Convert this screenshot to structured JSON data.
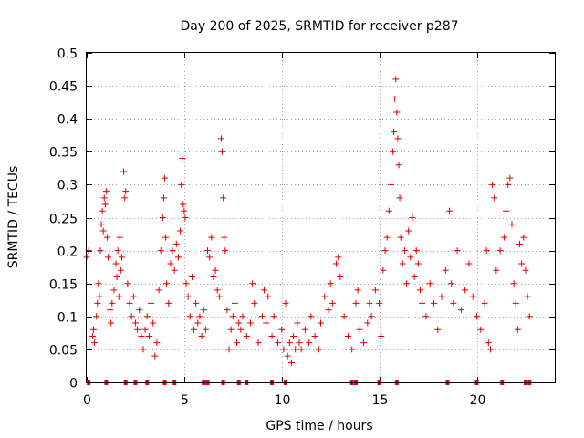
{
  "chart_data": {
    "type": "scatter",
    "title": "Day 200 of 2025, SRMTID for receiver p287",
    "xlabel": "GPS time / hours",
    "ylabel": "SRMTID / TECUs",
    "xlim": [
      0,
      24
    ],
    "ylim": [
      0,
      0.5
    ],
    "xticks": [
      0,
      5,
      10,
      15,
      20
    ],
    "yticks": [
      0,
      0.05,
      0.1,
      0.15,
      0.2,
      0.25,
      0.3,
      0.35,
      0.4,
      0.45,
      0.5
    ],
    "grid": true,
    "series": [
      {
        "name": "SRMTID",
        "color": "#e00000",
        "marker": "plus",
        "points": [
          [
            0.0,
            0.19
          ],
          [
            0.1,
            0.2
          ],
          [
            0.3,
            0.07
          ],
          [
            0.35,
            0.08
          ],
          [
            0.4,
            0.06
          ],
          [
            0.5,
            0.1
          ],
          [
            0.55,
            0.12
          ],
          [
            0.6,
            0.15
          ],
          [
            0.65,
            0.13
          ],
          [
            0.7,
            0.2
          ],
          [
            0.75,
            0.24
          ],
          [
            0.8,
            0.26
          ],
          [
            0.85,
            0.23
          ],
          [
            0.9,
            0.28
          ],
          [
            0.95,
            0.27
          ],
          [
            1.0,
            0.29
          ],
          [
            1.05,
            0.22
          ],
          [
            1.1,
            0.19
          ],
          [
            1.2,
            0.11
          ],
          [
            1.25,
            0.09
          ],
          [
            1.3,
            0.12
          ],
          [
            1.4,
            0.14
          ],
          [
            1.5,
            0.18
          ],
          [
            1.55,
            0.16
          ],
          [
            1.6,
            0.2
          ],
          [
            1.65,
            0.13
          ],
          [
            1.7,
            0.22
          ],
          [
            1.75,
            0.17
          ],
          [
            1.8,
            0.19
          ],
          [
            1.9,
            0.32
          ],
          [
            1.95,
            0.28
          ],
          [
            2.0,
            0.29
          ],
          [
            2.1,
            0.15
          ],
          [
            2.2,
            0.12
          ],
          [
            2.3,
            0.1
          ],
          [
            2.4,
            0.13
          ],
          [
            2.5,
            0.09
          ],
          [
            2.6,
            0.08
          ],
          [
            2.7,
            0.11
          ],
          [
            2.8,
            0.07
          ],
          [
            2.9,
            0.05
          ],
          [
            3.0,
            0.08
          ],
          [
            3.1,
            0.1
          ],
          [
            3.2,
            0.07
          ],
          [
            3.3,
            0.12
          ],
          [
            3.4,
            0.09
          ],
          [
            3.5,
            0.04
          ],
          [
            3.6,
            0.06
          ],
          [
            3.7,
            0.14
          ],
          [
            3.8,
            0.2
          ],
          [
            3.9,
            0.25
          ],
          [
            3.95,
            0.28
          ],
          [
            4.0,
            0.31
          ],
          [
            4.05,
            0.22
          ],
          [
            4.1,
            0.15
          ],
          [
            4.2,
            0.12
          ],
          [
            4.3,
            0.18
          ],
          [
            4.4,
            0.2
          ],
          [
            4.5,
            0.17
          ],
          [
            4.6,
            0.21
          ],
          [
            4.7,
            0.19
          ],
          [
            4.8,
            0.23
          ],
          [
            4.85,
            0.3
          ],
          [
            4.9,
            0.34
          ],
          [
            4.95,
            0.27
          ],
          [
            5.0,
            0.26
          ],
          [
            5.05,
            0.25
          ],
          [
            5.1,
            0.15
          ],
          [
            5.2,
            0.13
          ],
          [
            5.3,
            0.1
          ],
          [
            5.4,
            0.16
          ],
          [
            5.5,
            0.08
          ],
          [
            5.6,
            0.12
          ],
          [
            5.7,
            0.09
          ],
          [
            5.8,
            0.1
          ],
          [
            5.9,
            0.07
          ],
          [
            6.0,
            0.11
          ],
          [
            6.1,
            0.08
          ],
          [
            6.2,
            0.2
          ],
          [
            6.3,
            0.19
          ],
          [
            6.4,
            0.22
          ],
          [
            6.5,
            0.16
          ],
          [
            6.6,
            0.17
          ],
          [
            6.7,
            0.14
          ],
          [
            6.8,
            0.13
          ],
          [
            6.9,
            0.37
          ],
          [
            6.95,
            0.35
          ],
          [
            7.0,
            0.28
          ],
          [
            7.05,
            0.22
          ],
          [
            7.1,
            0.2
          ],
          [
            7.2,
            0.11
          ],
          [
            7.3,
            0.05
          ],
          [
            7.4,
            0.08
          ],
          [
            7.5,
            0.1
          ],
          [
            7.6,
            0.12
          ],
          [
            7.7,
            0.06
          ],
          [
            7.8,
            0.09
          ],
          [
            7.9,
            0.08
          ],
          [
            8.0,
            0.1
          ],
          [
            8.2,
            0.07
          ],
          [
            8.4,
            0.09
          ],
          [
            8.5,
            0.15
          ],
          [
            8.6,
            0.12
          ],
          [
            8.8,
            0.06
          ],
          [
            9.0,
            0.1
          ],
          [
            9.1,
            0.14
          ],
          [
            9.2,
            0.09
          ],
          [
            9.3,
            0.13
          ],
          [
            9.5,
            0.07
          ],
          [
            9.6,
            0.1
          ],
          [
            9.8,
            0.06
          ],
          [
            10.0,
            0.08
          ],
          [
            10.1,
            0.05
          ],
          [
            10.2,
            0.12
          ],
          [
            10.3,
            0.04
          ],
          [
            10.4,
            0.06
          ],
          [
            10.5,
            0.03
          ],
          [
            10.6,
            0.07
          ],
          [
            10.7,
            0.05
          ],
          [
            10.8,
            0.09
          ],
          [
            10.9,
            0.06
          ],
          [
            11.0,
            0.05
          ],
          [
            11.2,
            0.08
          ],
          [
            11.4,
            0.06
          ],
          [
            11.5,
            0.1
          ],
          [
            11.7,
            0.07
          ],
          [
            11.9,
            0.05
          ],
          [
            12.0,
            0.09
          ],
          [
            12.2,
            0.13
          ],
          [
            12.4,
            0.11
          ],
          [
            12.5,
            0.15
          ],
          [
            12.6,
            0.12
          ],
          [
            12.8,
            0.18
          ],
          [
            12.9,
            0.19
          ],
          [
            13.0,
            0.16
          ],
          [
            13.2,
            0.1
          ],
          [
            13.4,
            0.07
          ],
          [
            13.6,
            0.05
          ],
          [
            13.8,
            0.12
          ],
          [
            13.9,
            0.14
          ],
          [
            14.0,
            0.08
          ],
          [
            14.2,
            0.06
          ],
          [
            14.4,
            0.09
          ],
          [
            14.5,
            0.12
          ],
          [
            14.6,
            0.1
          ],
          [
            14.8,
            0.14
          ],
          [
            15.0,
            0.12
          ],
          [
            15.1,
            0.07
          ],
          [
            15.2,
            0.17
          ],
          [
            15.3,
            0.2
          ],
          [
            15.4,
            0.22
          ],
          [
            15.5,
            0.26
          ],
          [
            15.6,
            0.3
          ],
          [
            15.7,
            0.35
          ],
          [
            15.75,
            0.38
          ],
          [
            15.8,
            0.43
          ],
          [
            15.85,
            0.46
          ],
          [
            15.9,
            0.41
          ],
          [
            15.95,
            0.37
          ],
          [
            16.0,
            0.33
          ],
          [
            16.05,
            0.28
          ],
          [
            16.1,
            0.22
          ],
          [
            16.2,
            0.18
          ],
          [
            16.3,
            0.2
          ],
          [
            16.4,
            0.15
          ],
          [
            16.5,
            0.23
          ],
          [
            16.6,
            0.19
          ],
          [
            16.7,
            0.25
          ],
          [
            16.8,
            0.16
          ],
          [
            16.9,
            0.2
          ],
          [
            17.0,
            0.18
          ],
          [
            17.1,
            0.14
          ],
          [
            17.2,
            0.12
          ],
          [
            17.4,
            0.1
          ],
          [
            17.6,
            0.15
          ],
          [
            17.8,
            0.12
          ],
          [
            18.0,
            0.08
          ],
          [
            18.2,
            0.13
          ],
          [
            18.4,
            0.17
          ],
          [
            18.6,
            0.26
          ],
          [
            18.7,
            0.15
          ],
          [
            18.8,
            0.12
          ],
          [
            19.0,
            0.2
          ],
          [
            19.2,
            0.11
          ],
          [
            19.4,
            0.14
          ],
          [
            19.6,
            0.18
          ],
          [
            19.8,
            0.13
          ],
          [
            20.0,
            0.1
          ],
          [
            20.2,
            0.08
          ],
          [
            20.4,
            0.12
          ],
          [
            20.5,
            0.2
          ],
          [
            20.6,
            0.06
          ],
          [
            20.7,
            0.05
          ],
          [
            20.8,
            0.3
          ],
          [
            20.9,
            0.28
          ],
          [
            21.0,
            0.17
          ],
          [
            21.2,
            0.2
          ],
          [
            21.4,
            0.22
          ],
          [
            21.5,
            0.26
          ],
          [
            21.6,
            0.3
          ],
          [
            21.7,
            0.31
          ],
          [
            21.8,
            0.24
          ],
          [
            21.9,
            0.15
          ],
          [
            22.0,
            0.12
          ],
          [
            22.1,
            0.08
          ],
          [
            22.2,
            0.21
          ],
          [
            22.3,
            0.18
          ],
          [
            22.4,
            0.22
          ],
          [
            22.5,
            0.17
          ],
          [
            22.6,
            0.13
          ],
          [
            22.7,
            0.1
          ]
        ]
      }
    ],
    "zero_markers_x": [
      0.1,
      1.0,
      2.0,
      2.5,
      3.1,
      4.0,
      4.5,
      6.0,
      6.2,
      7.0,
      7.8,
      8.2,
      9.5,
      10.2,
      13.6,
      13.8,
      15.0,
      15.9,
      18.5,
      20.0,
      21.3,
      22.5,
      22.7
    ]
  }
}
